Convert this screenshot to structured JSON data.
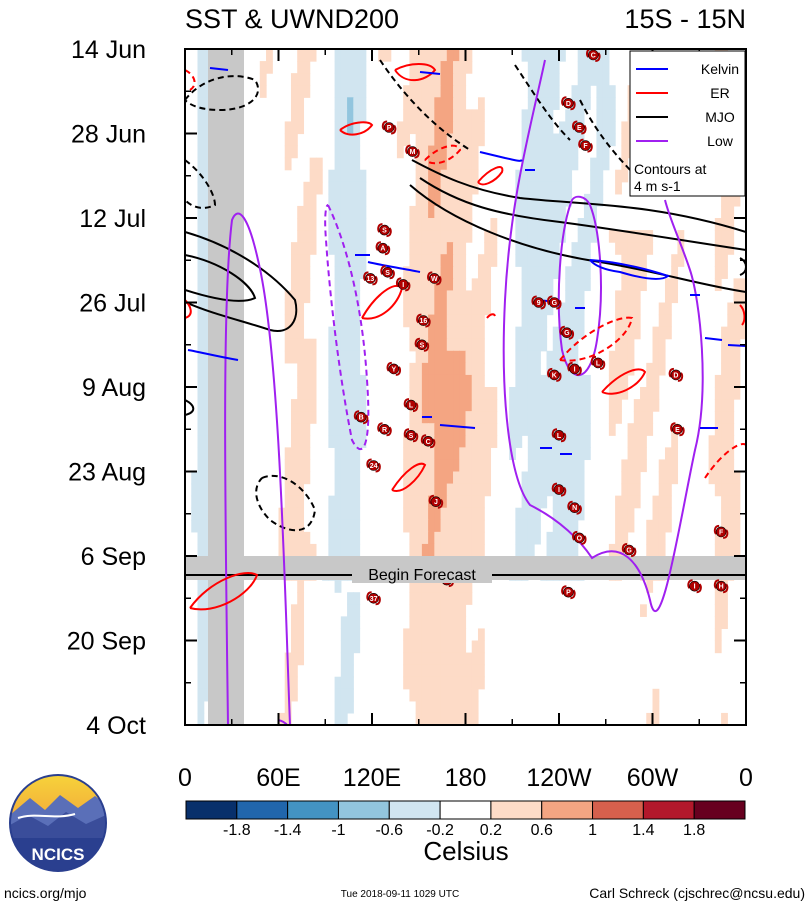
{
  "chart_data": {
    "type": "heatmap",
    "title": "SST & UWND200",
    "subtitle": "15S - 15N",
    "y_ticks": [
      "14 Jun",
      "28 Jun",
      "12 Jul",
      "26 Jul",
      "9 Aug",
      "23 Aug",
      "6 Sep",
      "20 Sep",
      "4 Oct"
    ],
    "y_range": [
      "14 Jun",
      "4 Oct"
    ],
    "x_ticks": [
      "0",
      "60E",
      "120E",
      "180",
      "120W",
      "60W",
      "0"
    ],
    "x_values": [
      0,
      60,
      120,
      180,
      240,
      300,
      360
    ],
    "x_range": [
      0,
      360
    ],
    "forecast_label": "Begin Forecast",
    "forecast_start_day": 88,
    "colorbar": {
      "title": "Celsius",
      "levels": [
        -1.8,
        -1.4,
        -1,
        -0.6,
        -0.2,
        0.2,
        0.6,
        1,
        1.4,
        1.8
      ],
      "level_labels": [
        "-1.8",
        "-1.4",
        "-1",
        "-0.6",
        "-0.2",
        "0.2",
        "0.6",
        "1",
        "1.4",
        "1.8"
      ],
      "colors": [
        "#08306b",
        "#2166ac",
        "#4393c3",
        "#92c5de",
        "#d1e5f0",
        "#ffffff",
        "#fddbc7",
        "#f4a582",
        "#d6604d",
        "#b2182b",
        "#67001f"
      ]
    },
    "legend": {
      "position": "top-right",
      "entries": [
        {
          "name": "Kelvin",
          "color": "#0000ff"
        },
        {
          "name": "ER",
          "color": "#ff0000"
        },
        {
          "name": "MJO",
          "color": "#000000"
        },
        {
          "name": "Low",
          "color": "#a020f0"
        }
      ],
      "note_line1": "Contours at",
      "note_line2": "4 m s-1"
    },
    "storms": [
      {
        "label": "C",
        "lon": 262,
        "day": 1
      },
      {
        "label": "P",
        "lon": 131,
        "day": 13
      },
      {
        "label": "D",
        "lon": 246,
        "day": 9
      },
      {
        "label": "E",
        "lon": 253,
        "day": 13
      },
      {
        "label": "F",
        "lon": 257,
        "day": 16
      },
      {
        "label": "M",
        "lon": 146,
        "day": 17
      },
      {
        "label": "S",
        "lon": 128,
        "day": 30
      },
      {
        "label": "A",
        "lon": 127,
        "day": 33
      },
      {
        "label": "S",
        "lon": 130,
        "day": 37
      },
      {
        "label": "13",
        "lon": 119,
        "day": 38
      },
      {
        "label": "I",
        "lon": 140,
        "day": 39
      },
      {
        "label": "W",
        "lon": 160,
        "day": 38
      },
      {
        "label": "9",
        "lon": 227,
        "day": 42
      },
      {
        "label": "G",
        "lon": 237,
        "day": 42
      },
      {
        "label": "16",
        "lon": 153,
        "day": 45
      },
      {
        "label": "G",
        "lon": 245,
        "day": 47
      },
      {
        "label": "S",
        "lon": 152,
        "day": 49
      },
      {
        "label": "Y",
        "lon": 134,
        "day": 53
      },
      {
        "label": "K",
        "lon": 237,
        "day": 54
      },
      {
        "label": "I",
        "lon": 250,
        "day": 53
      },
      {
        "label": "L",
        "lon": 265,
        "day": 52
      },
      {
        "label": "D",
        "lon": 315,
        "day": 54
      },
      {
        "label": "L",
        "lon": 145,
        "day": 59
      },
      {
        "label": "B",
        "lon": 113,
        "day": 61
      },
      {
        "label": "R",
        "lon": 128,
        "day": 63
      },
      {
        "label": "S",
        "lon": 145,
        "day": 64
      },
      {
        "label": "C",
        "lon": 156,
        "day": 65
      },
      {
        "label": "E",
        "lon": 316,
        "day": 63
      },
      {
        "label": "L",
        "lon": 240,
        "day": 64
      },
      {
        "label": "24",
        "lon": 121,
        "day": 69
      },
      {
        "label": "I",
        "lon": 240,
        "day": 73
      },
      {
        "label": "J",
        "lon": 161,
        "day": 75
      },
      {
        "label": "N",
        "lon": 250,
        "day": 76
      },
      {
        "label": "O",
        "lon": 253,
        "day": 81
      },
      {
        "label": "F",
        "lon": 344,
        "day": 80
      },
      {
        "label": "G",
        "lon": 285,
        "day": 83
      },
      {
        "label": "9",
        "lon": 168,
        "day": 88
      },
      {
        "label": "P",
        "lon": 246,
        "day": 90
      },
      {
        "label": "I",
        "lon": 327,
        "day": 89
      },
      {
        "label": "H",
        "lon": 344,
        "day": 89
      },
      {
        "label": "37",
        "lon": 121,
        "day": 91
      }
    ]
  }
}
